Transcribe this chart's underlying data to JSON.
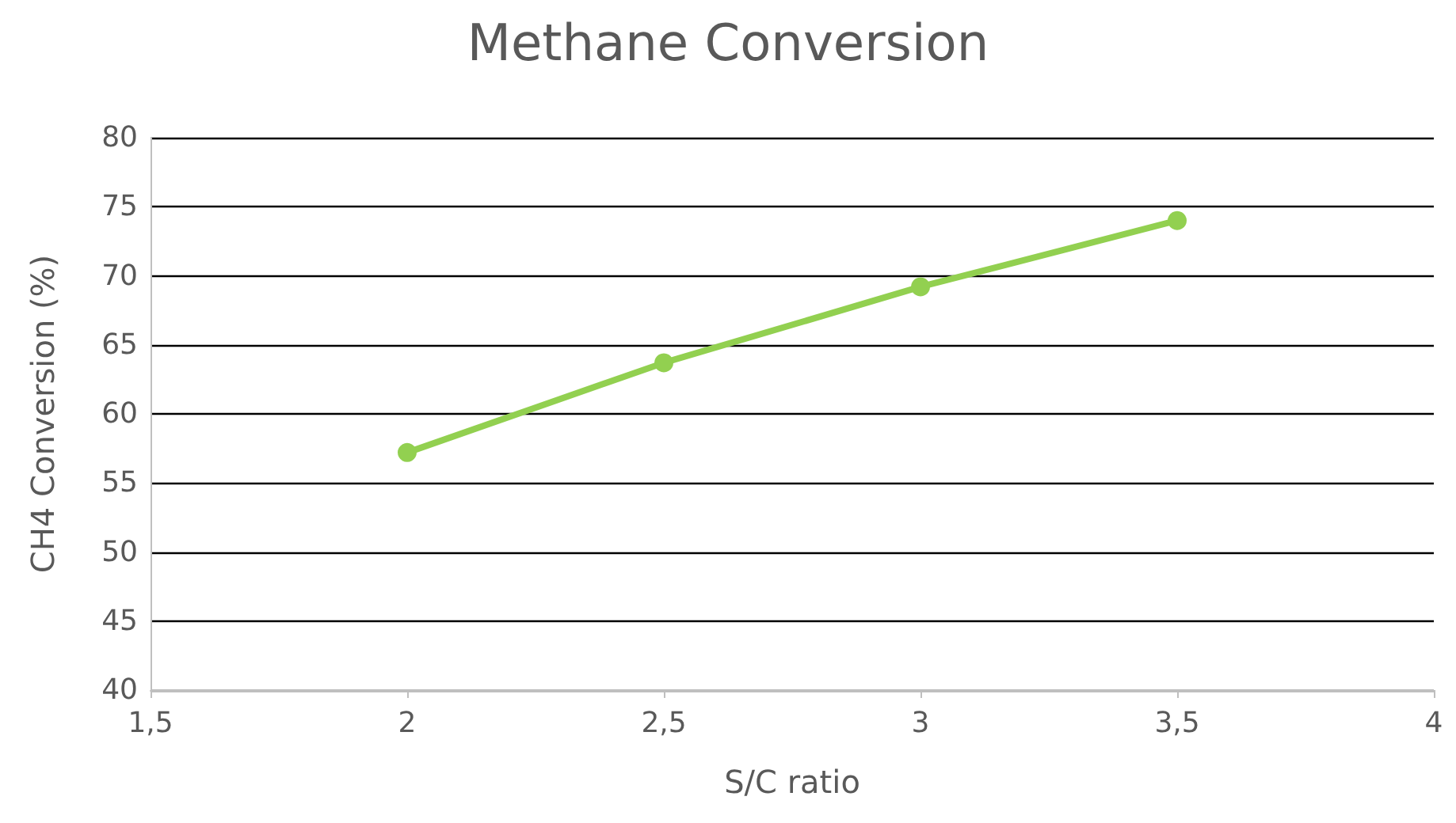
{
  "chart_data": {
    "type": "line",
    "title": "Methane Conversion",
    "xlabel": "S/C ratio",
    "ylabel": "CH4 Conversion (%)",
    "x": [
      2,
      2.5,
      3,
      3.5
    ],
    "series": [
      {
        "color": "#92d050",
        "values": [
          57.2,
          63.7,
          69.2,
          74.0
        ]
      }
    ],
    "xlim": [
      1.5,
      4
    ],
    "xticks": [
      {
        "value": 1.5,
        "label": "1,5"
      },
      2,
      {
        "value": 2.5,
        "label": "2,5"
      },
      3,
      {
        "value": 3.5,
        "label": "3,5"
      },
      4
    ],
    "ylim": [
      40,
      80
    ],
    "yticks": [
      40,
      45,
      50,
      55,
      60,
      65,
      70,
      75,
      80
    ],
    "grid": "y",
    "marker": "circle",
    "line_style": "solid"
  }
}
